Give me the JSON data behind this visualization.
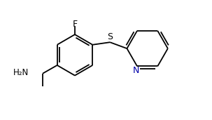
{
  "bg_color": "#ffffff",
  "line_color": "#000000",
  "s_color": "#000000",
  "n_color": "#0000aa",
  "bond_lw": 1.3,
  "figsize": [
    3.03,
    1.71
  ],
  "dpi": 100,
  "xlim": [
    0.0,
    8.5
  ],
  "ylim": [
    0.2,
    5.0
  ]
}
